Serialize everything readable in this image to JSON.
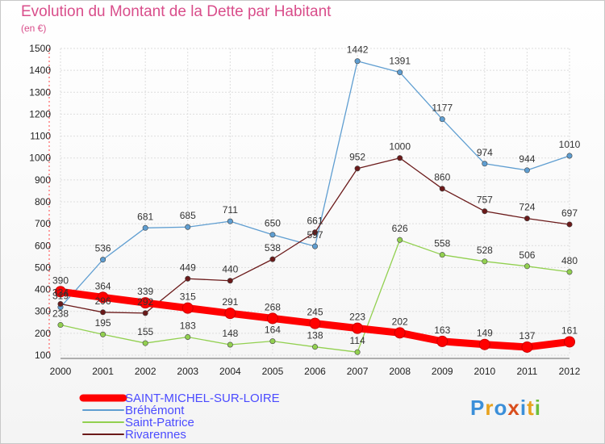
{
  "chart_data": {
    "type": "line",
    "title": "Evolution du Montant de la Dette par Habitant",
    "subtitle": "(en €)",
    "xlabel": "",
    "ylabel": "",
    "x": [
      "2000",
      "2001",
      "2002",
      "2003",
      "2004",
      "2005",
      "2006",
      "2007",
      "2008",
      "2009",
      "2010",
      "2011",
      "2012"
    ],
    "ylim": [
      100,
      1500
    ],
    "yticks": [
      100,
      200,
      300,
      400,
      500,
      600,
      700,
      800,
      900,
      1000,
      1100,
      1200,
      1300,
      1400,
      1500
    ],
    "grid": true,
    "legend_position": "bottom-left",
    "series": [
      {
        "name": "SAINT-MICHEL-SUR-LOIRE",
        "color": "#ff0000",
        "values": [
          390,
          364,
          339,
          315,
          291,
          268,
          245,
          223,
          202,
          163,
          149,
          137,
          161
        ]
      },
      {
        "name": "Bréhémont",
        "color": "#5f9ed1",
        "values": [
          319,
          536,
          681,
          685,
          711,
          650,
          597,
          1442,
          1391,
          1177,
          974,
          944,
          1010
        ]
      },
      {
        "name": "Saint-Patrice",
        "color": "#92d050",
        "values": [
          238,
          195,
          155,
          183,
          148,
          164,
          138,
          114,
          626,
          558,
          528,
          506,
          480
        ]
      },
      {
        "name": "Rivarennes",
        "color": "#6b1a1a",
        "values": [
          334,
          296,
          292,
          449,
          440,
          538,
          661,
          952,
          1000,
          860,
          757,
          724,
          697
        ]
      }
    ]
  },
  "logo": {
    "letters": [
      "P",
      "r",
      "o",
      "x",
      "i",
      "t",
      "i"
    ],
    "colors": [
      "#3b8fd9",
      "#e7a21d",
      "#3b8fd9",
      "#d94e1d",
      "#3b8fd9",
      "#e7a21d",
      "#6cbf3b"
    ]
  }
}
